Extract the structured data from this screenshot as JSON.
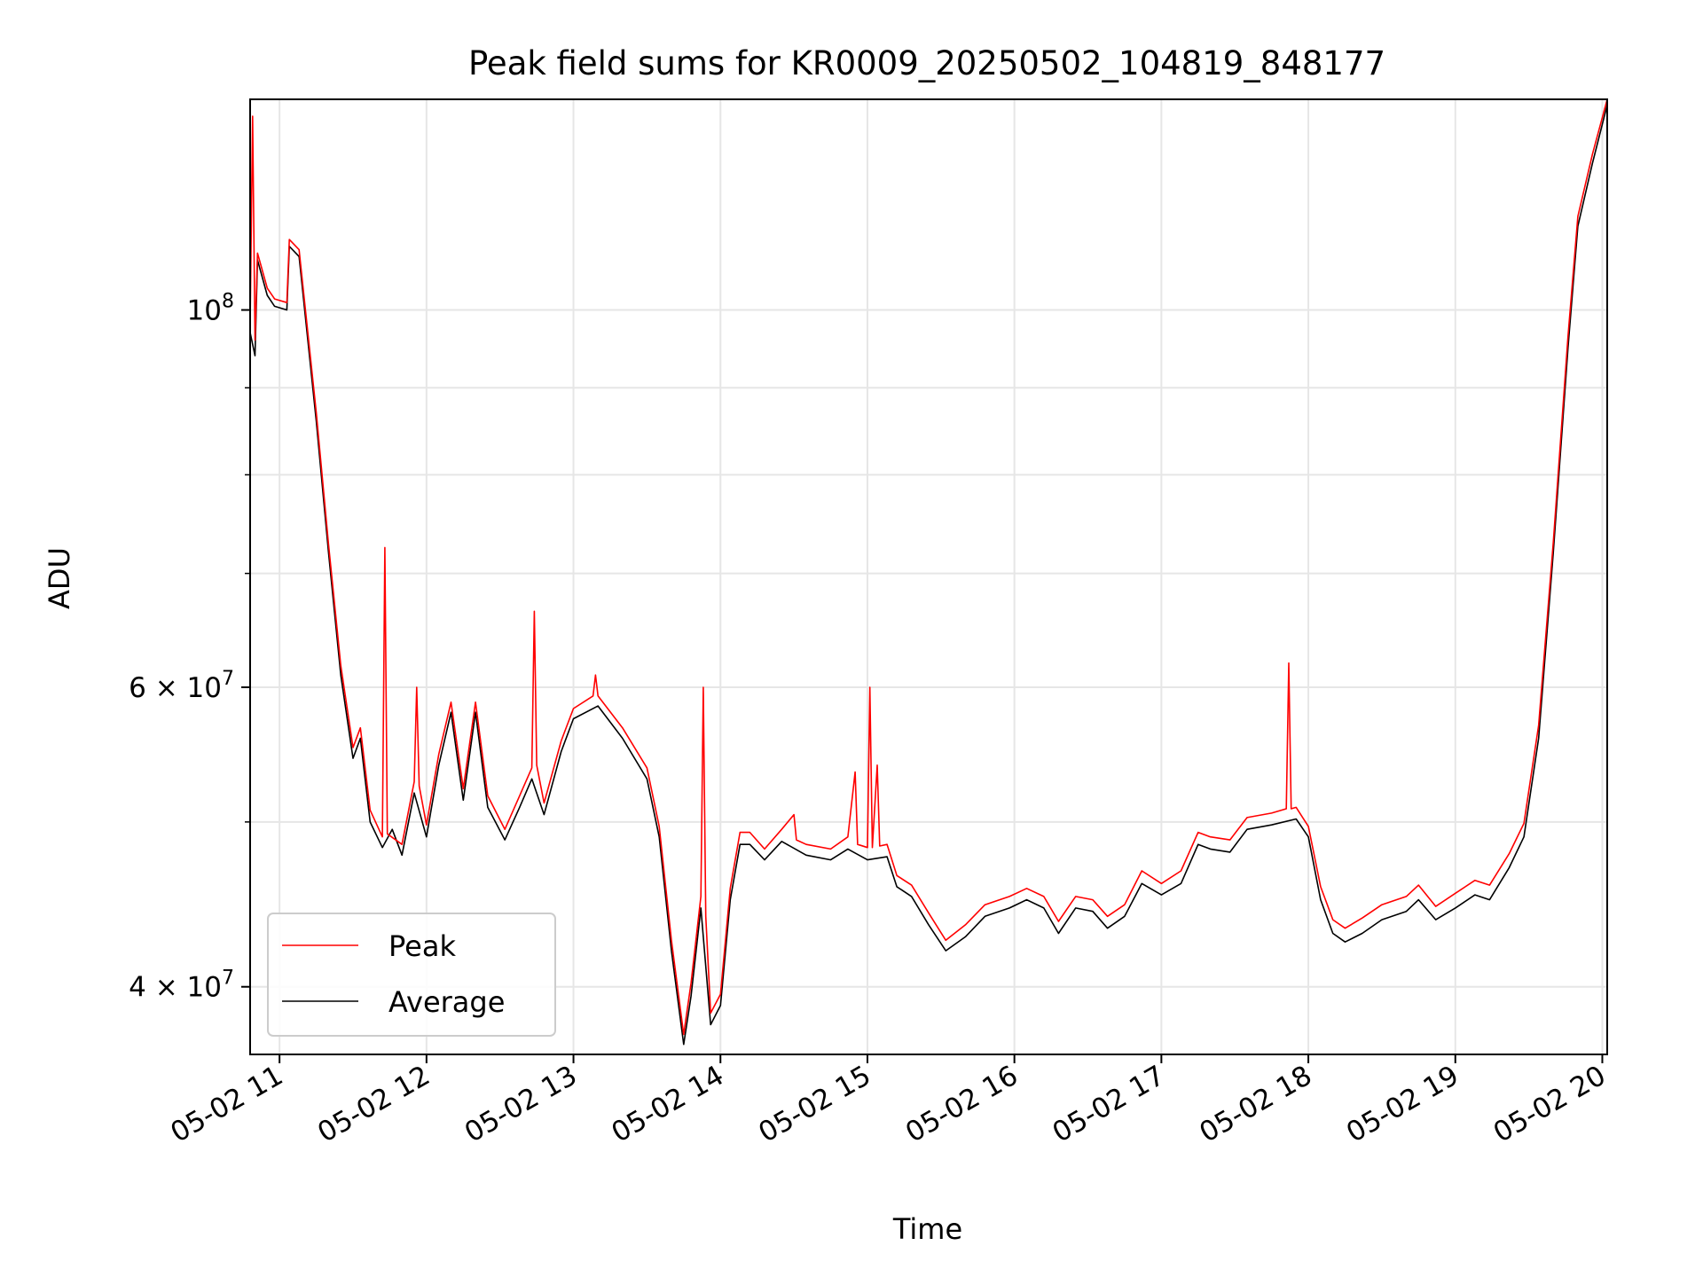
{
  "chart_data": {
    "type": "line",
    "title": "Peak field sums for KR0009_20250502_104819_848177",
    "xlabel": "Time",
    "ylabel": "ADU",
    "x_scale": "time",
    "y_scale": "log",
    "xlim": [
      "05-02 10:48",
      "05-02 20:02"
    ],
    "ylim": [
      36500000,
      133000000
    ],
    "x_ticks": [
      {
        "value": "05-02 11:00",
        "label": "05-02 11"
      },
      {
        "value": "05-02 12:00",
        "label": "05-02 12"
      },
      {
        "value": "05-02 13:00",
        "label": "05-02 13"
      },
      {
        "value": "05-02 14:00",
        "label": "05-02 14"
      },
      {
        "value": "05-02 15:00",
        "label": "05-02 15"
      },
      {
        "value": "05-02 16:00",
        "label": "05-02 16"
      },
      {
        "value": "05-02 17:00",
        "label": "05-02 17"
      },
      {
        "value": "05-02 18:00",
        "label": "05-02 18"
      },
      {
        "value": "05-02 19:00",
        "label": "05-02 19"
      },
      {
        "value": "05-02 20:00",
        "label": "05-02 20"
      }
    ],
    "y_ticks": [
      {
        "value": 40000000,
        "label": "4 × 10^7",
        "base": "4 × 10",
        "exp": "7"
      },
      {
        "value": 60000000,
        "label": "6 × 10^7",
        "base": "6 × 10",
        "exp": "7"
      },
      {
        "value": 100000000,
        "label": "10^8",
        "base": "10",
        "exp": "8"
      }
    ],
    "y_minor_ticks": [
      50000000,
      70000000,
      80000000,
      90000000
    ],
    "grid": true,
    "legend": {
      "position": "lower-left",
      "entries": [
        "Peak",
        "Average"
      ]
    },
    "series": [
      {
        "name": "Average",
        "color": "#000000",
        "points": [
          [
            "10:48",
            97000000
          ],
          [
            "10:50",
            94000000
          ],
          [
            "10:51",
            107000000
          ],
          [
            "10:55",
            102000000
          ],
          [
            "10:58",
            100500000
          ],
          [
            "11:03",
            100000000
          ],
          [
            "11:04",
            109000000
          ],
          [
            "11:08",
            107500000
          ],
          [
            "11:15",
            86000000
          ],
          [
            "11:20",
            72000000
          ],
          [
            "11:25",
            61000000
          ],
          [
            "11:30",
            54500000
          ],
          [
            "11:33",
            56000000
          ],
          [
            "11:37",
            50000000
          ],
          [
            "11:42",
            48300000
          ],
          [
            "11:46",
            49500000
          ],
          [
            "11:50",
            47800000
          ],
          [
            "11:55",
            52000000
          ],
          [
            "12:00",
            49000000
          ],
          [
            "12:05",
            54000000
          ],
          [
            "12:10",
            58000000
          ],
          [
            "12:15",
            51500000
          ],
          [
            "12:20",
            58000000
          ],
          [
            "12:25",
            51000000
          ],
          [
            "12:32",
            48800000
          ],
          [
            "12:38",
            51000000
          ],
          [
            "12:43",
            53000000
          ],
          [
            "12:48",
            50500000
          ],
          [
            "12:55",
            55000000
          ],
          [
            "13:00",
            57500000
          ],
          [
            "13:10",
            58500000
          ],
          [
            "13:20",
            56000000
          ],
          [
            "13:30",
            53000000
          ],
          [
            "13:35",
            49000000
          ],
          [
            "13:40",
            42000000
          ],
          [
            "13:45",
            37000000
          ],
          [
            "13:48",
            39500000
          ],
          [
            "13:52",
            44500000
          ],
          [
            "13:56",
            38000000
          ],
          [
            "14:00",
            39000000
          ],
          [
            "14:04",
            45000000
          ],
          [
            "14:08",
            48500000
          ],
          [
            "14:12",
            48500000
          ],
          [
            "14:18",
            47500000
          ],
          [
            "14:25",
            48700000
          ],
          [
            "14:35",
            47800000
          ],
          [
            "14:45",
            47500000
          ],
          [
            "14:52",
            48200000
          ],
          [
            "15:00",
            47500000
          ],
          [
            "15:08",
            47700000
          ],
          [
            "15:12",
            45800000
          ],
          [
            "15:18",
            45200000
          ],
          [
            "15:25",
            43500000
          ],
          [
            "15:32",
            42000000
          ],
          [
            "15:40",
            42800000
          ],
          [
            "15:48",
            44000000
          ],
          [
            "15:58",
            44500000
          ],
          [
            "16:05",
            45000000
          ],
          [
            "16:12",
            44500000
          ],
          [
            "16:18",
            43000000
          ],
          [
            "16:25",
            44500000
          ],
          [
            "16:32",
            44300000
          ],
          [
            "16:38",
            43300000
          ],
          [
            "16:45",
            44000000
          ],
          [
            "16:52",
            46000000
          ],
          [
            "17:00",
            45300000
          ],
          [
            "17:08",
            46000000
          ],
          [
            "17:15",
            48500000
          ],
          [
            "17:20",
            48200000
          ],
          [
            "17:28",
            48000000
          ],
          [
            "17:35",
            49500000
          ],
          [
            "17:45",
            49800000
          ],
          [
            "17:55",
            50200000
          ],
          [
            "18:00",
            49000000
          ],
          [
            "18:05",
            45000000
          ],
          [
            "18:10",
            43000000
          ],
          [
            "18:15",
            42500000
          ],
          [
            "18:22",
            43000000
          ],
          [
            "18:30",
            43800000
          ],
          [
            "18:40",
            44300000
          ],
          [
            "18:45",
            45000000
          ],
          [
            "18:52",
            43800000
          ],
          [
            "19:00",
            44500000
          ],
          [
            "19:08",
            45300000
          ],
          [
            "19:14",
            45000000
          ],
          [
            "19:22",
            47000000
          ],
          [
            "19:28",
            49000000
          ],
          [
            "19:34",
            56000000
          ],
          [
            "19:40",
            72000000
          ],
          [
            "19:46",
            95000000
          ],
          [
            "19:50",
            112000000
          ],
          [
            "19:56",
            122000000
          ],
          [
            "20:02",
            132000000
          ]
        ]
      },
      {
        "name": "Peak",
        "color": "#ff0000",
        "points": [
          [
            "10:48",
            98000000
          ],
          [
            "10:49",
            130000000
          ],
          [
            "10:50",
            96000000
          ],
          [
            "10:51",
            108000000
          ],
          [
            "10:55",
            103000000
          ],
          [
            "10:58",
            101500000
          ],
          [
            "11:03",
            101000000
          ],
          [
            "11:04",
            110000000
          ],
          [
            "11:08",
            108500000
          ],
          [
            "11:15",
            87000000
          ],
          [
            "11:20",
            72800000
          ],
          [
            "11:25",
            61800000
          ],
          [
            "11:30",
            55300000
          ],
          [
            "11:33",
            56800000
          ],
          [
            "11:37",
            50800000
          ],
          [
            "11:42",
            49000000
          ],
          [
            "11:43",
            72500000
          ],
          [
            "11:44",
            49200000
          ],
          [
            "11:50",
            48500000
          ],
          [
            "11:55",
            52800000
          ],
          [
            "11:56",
            60000000
          ],
          [
            "11:57",
            52500000
          ],
          [
            "12:00",
            49800000
          ],
          [
            "12:05",
            54800000
          ],
          [
            "12:10",
            58800000
          ],
          [
            "12:15",
            52300000
          ],
          [
            "12:20",
            58800000
          ],
          [
            "12:25",
            51800000
          ],
          [
            "12:32",
            49500000
          ],
          [
            "12:38",
            51800000
          ],
          [
            "12:43",
            53800000
          ],
          [
            "12:44",
            66500000
          ],
          [
            "12:45",
            54000000
          ],
          [
            "12:48",
            51300000
          ],
          [
            "12:55",
            55800000
          ],
          [
            "13:00",
            58300000
          ],
          [
            "13:08",
            59300000
          ],
          [
            "13:09",
            61000000
          ],
          [
            "13:10",
            59300000
          ],
          [
            "13:20",
            56800000
          ],
          [
            "13:30",
            53800000
          ],
          [
            "13:35",
            49700000
          ],
          [
            "13:40",
            42600000
          ],
          [
            "13:45",
            37500000
          ],
          [
            "13:48",
            40200000
          ],
          [
            "13:52",
            45200000
          ],
          [
            "13:53",
            60000000
          ],
          [
            "13:54",
            44000000
          ],
          [
            "13:56",
            38600000
          ],
          [
            "14:00",
            39600000
          ],
          [
            "14:04",
            45700000
          ],
          [
            "14:08",
            49300000
          ],
          [
            "14:12",
            49300000
          ],
          [
            "14:18",
            48200000
          ],
          [
            "14:25",
            49500000
          ],
          [
            "14:30",
            50500000
          ],
          [
            "14:31",
            48800000
          ],
          [
            "14:35",
            48500000
          ],
          [
            "14:45",
            48200000
          ],
          [
            "14:52",
            49000000
          ],
          [
            "14:55",
            53500000
          ],
          [
            "14:56",
            48500000
          ],
          [
            "15:00",
            48300000
          ],
          [
            "15:01",
            60000000
          ],
          [
            "15:02",
            48300000
          ],
          [
            "15:04",
            54000000
          ],
          [
            "15:05",
            48400000
          ],
          [
            "15:08",
            48500000
          ],
          [
            "15:12",
            46500000
          ],
          [
            "15:18",
            45900000
          ],
          [
            "15:25",
            44200000
          ],
          [
            "15:32",
            42600000
          ],
          [
            "15:40",
            43500000
          ],
          [
            "15:48",
            44700000
          ],
          [
            "15:58",
            45200000
          ],
          [
            "16:05",
            45700000
          ],
          [
            "16:12",
            45200000
          ],
          [
            "16:18",
            43700000
          ],
          [
            "16:25",
            45200000
          ],
          [
            "16:32",
            45000000
          ],
          [
            "16:38",
            44000000
          ],
          [
            "16:45",
            44700000
          ],
          [
            "16:52",
            46800000
          ],
          [
            "17:00",
            46000000
          ],
          [
            "17:08",
            46800000
          ],
          [
            "17:15",
            49300000
          ],
          [
            "17:20",
            49000000
          ],
          [
            "17:28",
            48800000
          ],
          [
            "17:35",
            50300000
          ],
          [
            "17:45",
            50600000
          ],
          [
            "17:51",
            50900000
          ],
          [
            "17:52",
            62000000
          ],
          [
            "17:53",
            50900000
          ],
          [
            "17:55",
            51000000
          ],
          [
            "18:00",
            49700000
          ],
          [
            "18:05",
            45800000
          ],
          [
            "18:10",
            43800000
          ],
          [
            "18:15",
            43300000
          ],
          [
            "18:22",
            43900000
          ],
          [
            "18:30",
            44700000
          ],
          [
            "18:40",
            45200000
          ],
          [
            "18:45",
            45900000
          ],
          [
            "18:52",
            44600000
          ],
          [
            "19:00",
            45400000
          ],
          [
            "19:08",
            46200000
          ],
          [
            "19:14",
            45900000
          ],
          [
            "19:22",
            47900000
          ],
          [
            "19:28",
            49900000
          ],
          [
            "19:34",
            57000000
          ],
          [
            "19:40",
            73000000
          ],
          [
            "19:46",
            96500000
          ],
          [
            "19:50",
            113500000
          ],
          [
            "19:56",
            123500000
          ],
          [
            "20:02",
            133000000
          ]
        ]
      }
    ]
  }
}
